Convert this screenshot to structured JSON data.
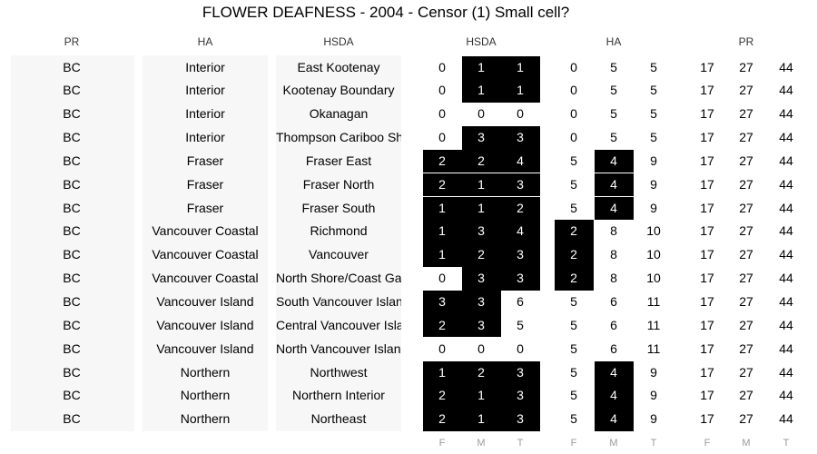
{
  "title": "FLOWER DEAFNESS - 2004 - Censor (1) Small cell?",
  "group_headers": {
    "pr_col": "PR",
    "ha_col": "HA",
    "hsda_col": "HSDA",
    "hsda_group": "HSDA",
    "ha_group": "HA",
    "pr_group": "PR"
  },
  "sub_headers": [
    "F",
    "M",
    "T",
    "F",
    "M",
    "T",
    "F",
    "M",
    "T"
  ],
  "chart_data": {
    "type": "table",
    "title": "FLOWER DEAFNESS - 2004 - Censor (1) Small cell?",
    "columns": [
      "PR",
      "HA",
      "HSDA",
      "HSDA F",
      "HSDA M",
      "HSDA T",
      "HA F",
      "HA M",
      "HA T",
      "PR F",
      "PR M",
      "PR T"
    ],
    "highlight_meaning": "Censor (1) Small cell?",
    "rows": [
      {
        "pr": "BC",
        "ha": "Interior",
        "hsda": "East Kootenay",
        "hsda_vals": [
          0,
          1,
          1
        ],
        "ha_vals": [
          0,
          5,
          5
        ],
        "pr_vals": [
          17,
          27,
          44
        ],
        "hsda_small": [
          false,
          true,
          true
        ],
        "ha_small": [
          false,
          false,
          false
        ]
      },
      {
        "pr": "BC",
        "ha": "Interior",
        "hsda": "Kootenay Boundary",
        "hsda_vals": [
          0,
          1,
          1
        ],
        "ha_vals": [
          0,
          5,
          5
        ],
        "pr_vals": [
          17,
          27,
          44
        ],
        "hsda_small": [
          false,
          true,
          true
        ],
        "ha_small": [
          false,
          false,
          false
        ]
      },
      {
        "pr": "BC",
        "ha": "Interior",
        "hsda": "Okanagan",
        "hsda_vals": [
          0,
          0,
          0
        ],
        "ha_vals": [
          0,
          5,
          5
        ],
        "pr_vals": [
          17,
          27,
          44
        ],
        "hsda_small": [
          false,
          false,
          false
        ],
        "ha_small": [
          false,
          false,
          false
        ]
      },
      {
        "pr": "BC",
        "ha": "Interior",
        "hsda": "Thompson Cariboo Shuswap",
        "hsda_vals": [
          0,
          3,
          3
        ],
        "ha_vals": [
          0,
          5,
          5
        ],
        "pr_vals": [
          17,
          27,
          44
        ],
        "hsda_small": [
          false,
          true,
          true
        ],
        "ha_small": [
          false,
          false,
          false
        ]
      },
      {
        "pr": "BC",
        "ha": "Fraser",
        "hsda": "Fraser East",
        "hsda_vals": [
          2,
          2,
          4
        ],
        "ha_vals": [
          5,
          4,
          9
        ],
        "pr_vals": [
          17,
          27,
          44
        ],
        "hsda_small": [
          true,
          true,
          true
        ],
        "ha_small": [
          false,
          true,
          false
        ]
      },
      {
        "pr": "BC",
        "ha": "Fraser",
        "hsda": "Fraser North",
        "hsda_vals": [
          2,
          1,
          3
        ],
        "ha_vals": [
          5,
          4,
          9
        ],
        "pr_vals": [
          17,
          27,
          44
        ],
        "hsda_small": [
          true,
          true,
          true
        ],
        "ha_small": [
          false,
          true,
          false
        ]
      },
      {
        "pr": "BC",
        "ha": "Fraser",
        "hsda": "Fraser South",
        "hsda_vals": [
          1,
          1,
          2
        ],
        "ha_vals": [
          5,
          4,
          9
        ],
        "pr_vals": [
          17,
          27,
          44
        ],
        "hsda_small": [
          true,
          true,
          true
        ],
        "ha_small": [
          false,
          true,
          false
        ]
      },
      {
        "pr": "BC",
        "ha": "Vancouver Coastal",
        "hsda": "Richmond",
        "hsda_vals": [
          1,
          3,
          4
        ],
        "ha_vals": [
          2,
          8,
          10
        ],
        "pr_vals": [
          17,
          27,
          44
        ],
        "hsda_small": [
          true,
          true,
          true
        ],
        "ha_small": [
          true,
          false,
          false
        ]
      },
      {
        "pr": "BC",
        "ha": "Vancouver Coastal",
        "hsda": "Vancouver",
        "hsda_vals": [
          1,
          2,
          3
        ],
        "ha_vals": [
          2,
          8,
          10
        ],
        "pr_vals": [
          17,
          27,
          44
        ],
        "hsda_small": [
          true,
          true,
          true
        ],
        "ha_small": [
          true,
          false,
          false
        ]
      },
      {
        "pr": "BC",
        "ha": "Vancouver Coastal",
        "hsda": "North Shore/Coast Garibaldi",
        "hsda_vals": [
          0,
          3,
          3
        ],
        "ha_vals": [
          2,
          8,
          10
        ],
        "pr_vals": [
          17,
          27,
          44
        ],
        "hsda_small": [
          false,
          true,
          true
        ],
        "ha_small": [
          true,
          false,
          false
        ]
      },
      {
        "pr": "BC",
        "ha": "Vancouver Island",
        "hsda": "South Vancouver Island",
        "hsda_vals": [
          3,
          3,
          6
        ],
        "ha_vals": [
          5,
          6,
          11
        ],
        "pr_vals": [
          17,
          27,
          44
        ],
        "hsda_small": [
          true,
          true,
          false
        ],
        "ha_small": [
          false,
          false,
          false
        ]
      },
      {
        "pr": "BC",
        "ha": "Vancouver Island",
        "hsda": "Central Vancouver Island",
        "hsda_vals": [
          2,
          3,
          5
        ],
        "ha_vals": [
          5,
          6,
          11
        ],
        "pr_vals": [
          17,
          27,
          44
        ],
        "hsda_small": [
          true,
          true,
          false
        ],
        "ha_small": [
          false,
          false,
          false
        ]
      },
      {
        "pr": "BC",
        "ha": "Vancouver Island",
        "hsda": "North Vancouver Island",
        "hsda_vals": [
          0,
          0,
          0
        ],
        "ha_vals": [
          5,
          6,
          11
        ],
        "pr_vals": [
          17,
          27,
          44
        ],
        "hsda_small": [
          false,
          false,
          false
        ],
        "ha_small": [
          false,
          false,
          false
        ]
      },
      {
        "pr": "BC",
        "ha": "Northern",
        "hsda": "Northwest",
        "hsda_vals": [
          1,
          2,
          3
        ],
        "ha_vals": [
          5,
          4,
          9
        ],
        "pr_vals": [
          17,
          27,
          44
        ],
        "hsda_small": [
          true,
          true,
          true
        ],
        "ha_small": [
          false,
          true,
          false
        ]
      },
      {
        "pr": "BC",
        "ha": "Northern",
        "hsda": "Northern Interior",
        "hsda_vals": [
          2,
          1,
          3
        ],
        "ha_vals": [
          5,
          4,
          9
        ],
        "pr_vals": [
          17,
          27,
          44
        ],
        "hsda_small": [
          true,
          true,
          true
        ],
        "ha_small": [
          false,
          true,
          false
        ]
      },
      {
        "pr": "BC",
        "ha": "Northern",
        "hsda": "Northeast",
        "hsda_vals": [
          2,
          1,
          3
        ],
        "ha_vals": [
          5,
          4,
          9
        ],
        "pr_vals": [
          17,
          27,
          44
        ],
        "hsda_small": [
          true,
          true,
          true
        ],
        "ha_small": [
          false,
          true,
          false
        ]
      }
    ]
  }
}
